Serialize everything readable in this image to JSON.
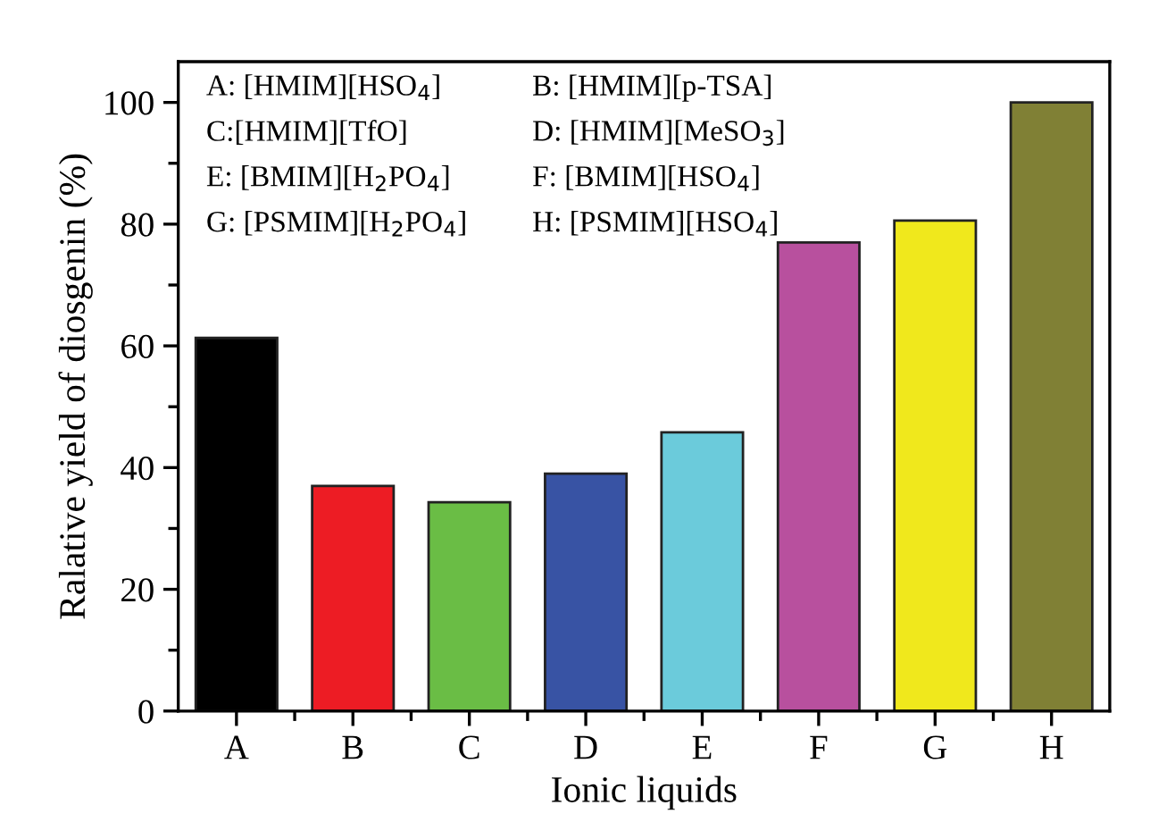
{
  "chart_data": {
    "type": "bar",
    "xlabel": "Ionic liquids",
    "ylabel": "Ralative yield of diosgenin (%)",
    "categories": [
      "A",
      "B",
      "C",
      "D",
      "E",
      "F",
      "G",
      "H"
    ],
    "values": [
      61.3,
      37,
      34.3,
      39,
      45.8,
      77,
      80.6,
      100
    ],
    "colors": [
      "#000000",
      "#ed1c24",
      "#6abd45",
      "#3853a4",
      "#6bcbdb",
      "#b8509e",
      "#f0e81c",
      "#808035"
    ],
    "ylim": [
      0,
      106.7
    ],
    "yticks": [
      0,
      20,
      40,
      60,
      80,
      100
    ],
    "grid": false,
    "legend": false,
    "annotations": [
      "A: [HMIM][HSO$_{4}$]",
      "B: [HMIM][p-TSA]",
      "C:[HMIM][TfO]",
      "D: [HMIM][MeSO$_{3}$]",
      "E: [BMIM][H$_{2}$PO$_{4}$]",
      "F: [BMIM][HSO$_{4}$]",
      "G: [PSMIM][H$_{2}$PO$_{4}$]",
      "H: [PSMIM][HSO$_{4}$]"
    ]
  }
}
